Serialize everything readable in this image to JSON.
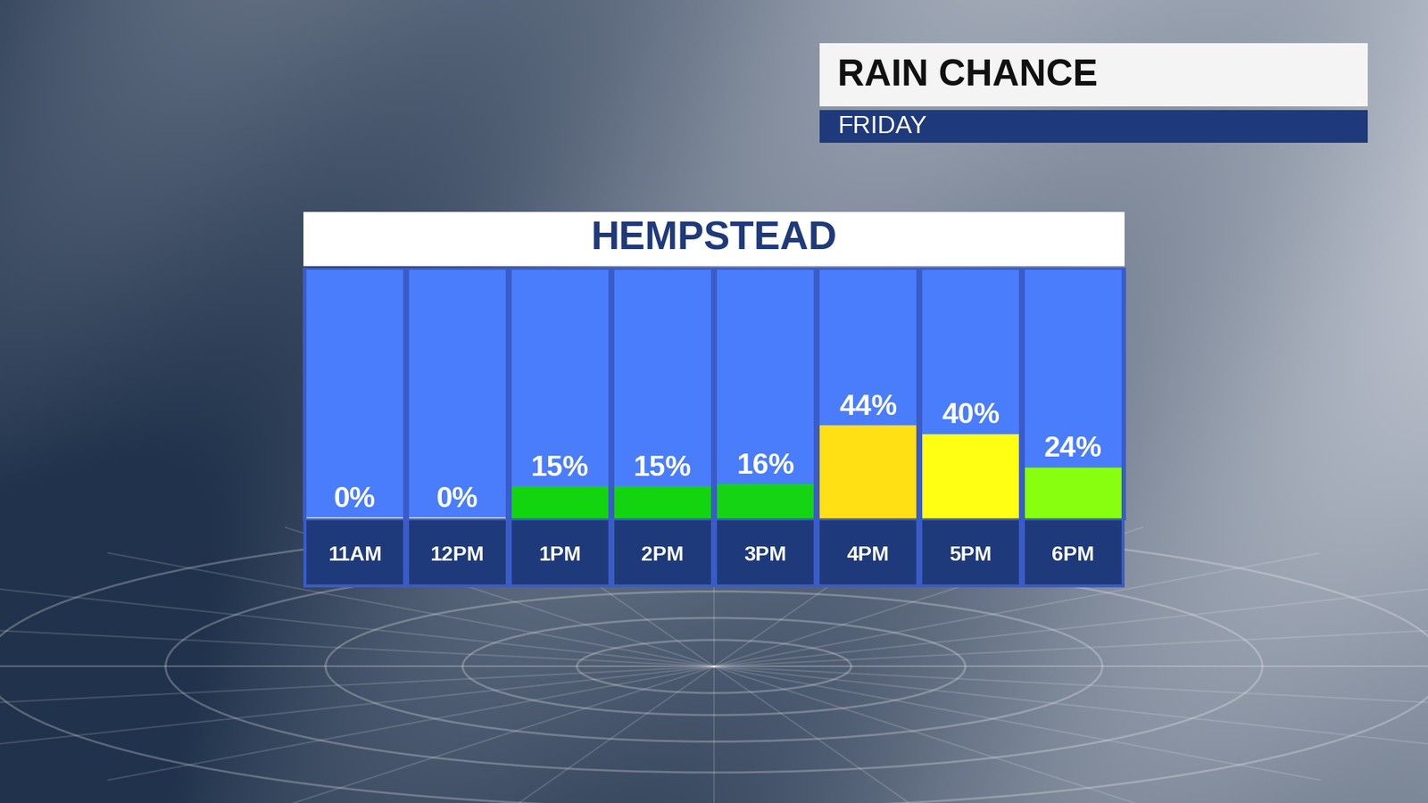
{
  "chart_data": {
    "type": "bar",
    "title": "RAIN CHANCE",
    "subtitle": "FRIDAY",
    "location": "HEMPSTEAD",
    "categories": [
      "11AM",
      "12PM",
      "1PM",
      "2PM",
      "3PM",
      "4PM",
      "5PM",
      "6PM"
    ],
    "values": [
      0,
      0,
      15,
      15,
      16,
      44,
      40,
      24
    ],
    "value_labels": [
      "0%",
      "0%",
      "15%",
      "15%",
      "16%",
      "44%",
      "40%",
      "24%"
    ],
    "colors": [
      "#ffffff",
      "#ffffff",
      "#12d40f",
      "#12d40f",
      "#14d414",
      "#ffe014",
      "#ffff14",
      "#88ff0f"
    ],
    "ylim": [
      0,
      120
    ],
    "data_labels": true,
    "tick_labels": "x",
    "grid": false
  }
}
